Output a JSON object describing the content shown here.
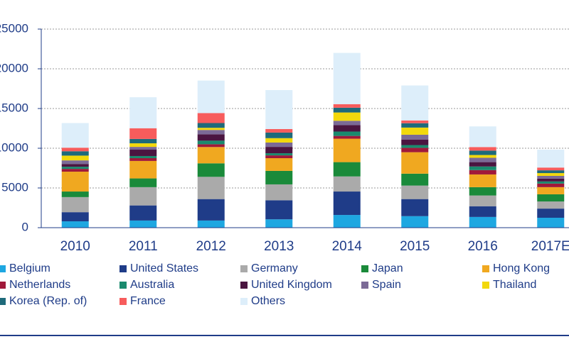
{
  "chart_data": {
    "type": "stacked_bar",
    "categories": [
      "2010",
      "2011",
      "2012",
      "2013",
      "2014",
      "2015",
      "2016",
      "2017E"
    ],
    "ylim": [
      0,
      25000
    ],
    "yticks": [
      0,
      5000,
      10000,
      15000,
      20000,
      25000
    ],
    "grid": true,
    "legend": "bottom",
    "series": [
      {
        "name": "Belgium",
        "color": "#1ea7e1",
        "values": [
          800,
          900,
          900,
          1050,
          1600,
          1450,
          1350,
          1250
        ]
      },
      {
        "name": "United States",
        "color": "#1f3c88",
        "values": [
          1150,
          1900,
          2700,
          2400,
          2950,
          2150,
          1350,
          1150
        ]
      },
      {
        "name": "Germany",
        "color": "#aaaaaa",
        "values": [
          1900,
          2300,
          2800,
          2000,
          1900,
          1700,
          1350,
          900
        ]
      },
      {
        "name": "Japan",
        "color": "#1a8a3a",
        "values": [
          700,
          1100,
          1700,
          1700,
          1800,
          1500,
          1050,
          900
        ]
      },
      {
        "name": "Hong Kong",
        "color": "#f0a820",
        "values": [
          2500,
          2200,
          2050,
          1600,
          2950,
          2700,
          1600,
          900
        ]
      },
      {
        "name": "Netherlands",
        "color": "#a0193a",
        "values": [
          350,
          350,
          350,
          350,
          350,
          550,
          550,
          450
        ]
      },
      {
        "name": "Australia",
        "color": "#1a8a6e",
        "values": [
          270,
          270,
          450,
          270,
          550,
          350,
          450,
          270
        ]
      },
      {
        "name": "United Kingdom",
        "color": "#4a1540",
        "values": [
          350,
          800,
          800,
          800,
          800,
          700,
          550,
          350
        ]
      },
      {
        "name": "Spain",
        "color": "#7b6a96",
        "values": [
          450,
          350,
          550,
          550,
          550,
          600,
          550,
          350
        ]
      },
      {
        "name": "Thailand",
        "color": "#f2d80c",
        "values": [
          600,
          450,
          270,
          550,
          1050,
          900,
          350,
          350
        ]
      },
      {
        "name": "Korea (Rep. of)",
        "color": "#1e6a7a",
        "values": [
          550,
          550,
          600,
          700,
          600,
          550,
          550,
          350
        ]
      },
      {
        "name": "France",
        "color": "#f75c5c",
        "values": [
          450,
          1350,
          1250,
          450,
          450,
          350,
          450,
          350
        ]
      },
      {
        "name": "Others",
        "color": "#ddeefa",
        "values": [
          3100,
          3900,
          4100,
          4900,
          6450,
          4400,
          2600,
          2250
        ]
      }
    ]
  }
}
